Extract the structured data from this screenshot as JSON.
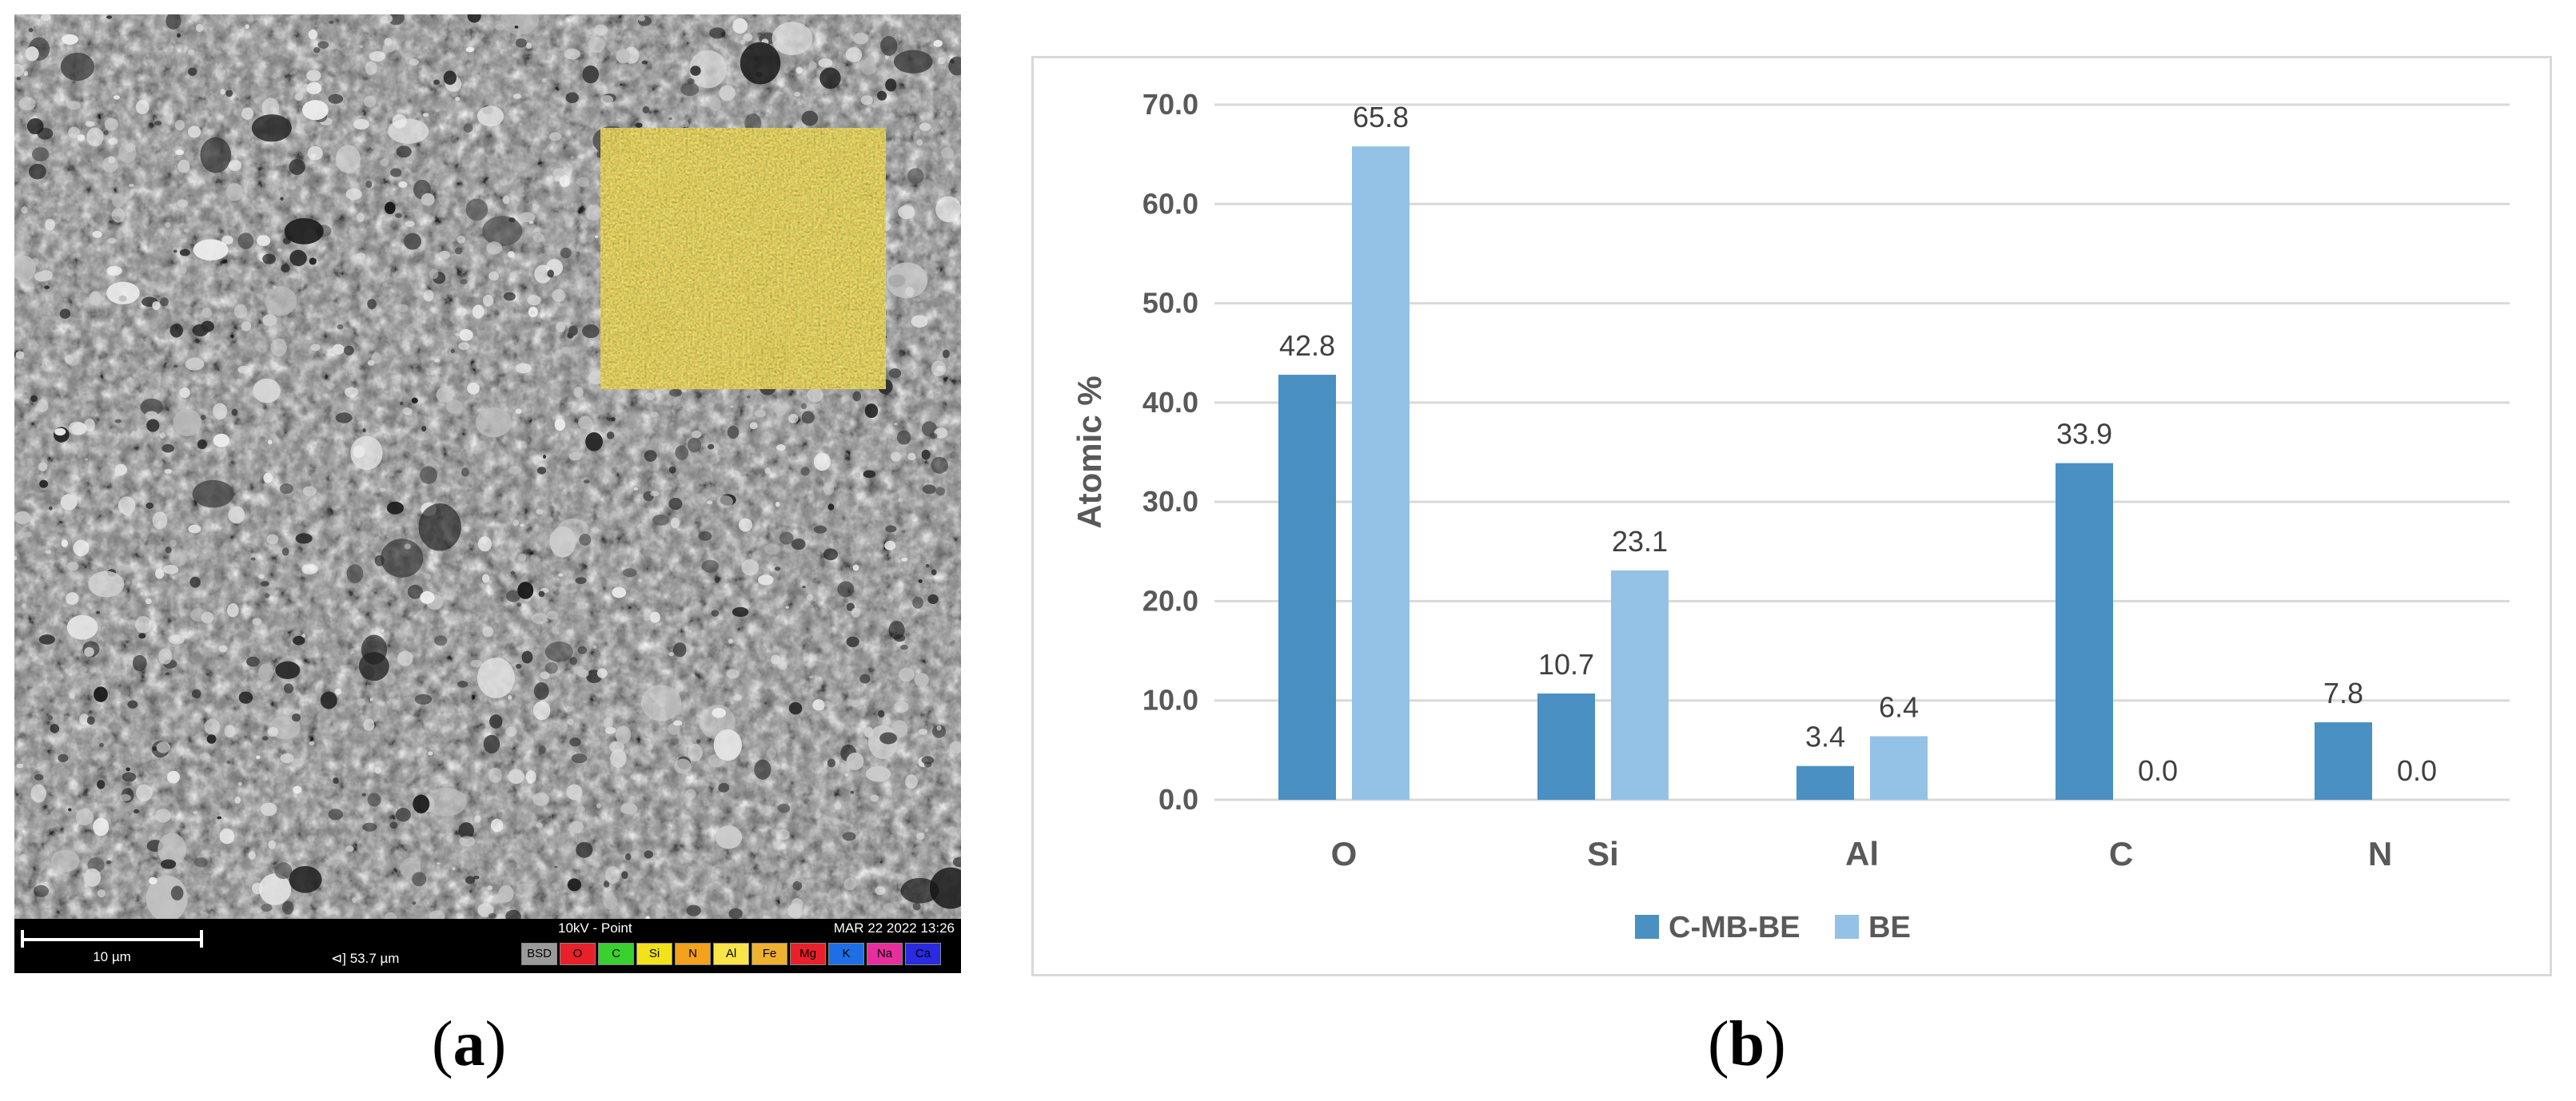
{
  "panel_a": {
    "label_open": "(",
    "label_letter": "a",
    "label_close": ")",
    "databar": {
      "scale_bar": "10 µm",
      "hfw": "⊲] 53.7 µm",
      "mode": "10kV - Point",
      "datetime": "MAR 22 2022 13:26",
      "element_chips": [
        {
          "text": "BSD",
          "color": "#9a9a9a"
        },
        {
          "text": "O",
          "color": "#e8202a"
        },
        {
          "text": "C",
          "color": "#39d12e"
        },
        {
          "text": "Si",
          "color": "#f2e21a"
        },
        {
          "text": "N",
          "color": "#f4a11b"
        },
        {
          "text": "Al",
          "color": "#f9e547"
        },
        {
          "text": "Fe",
          "color": "#f0b030"
        },
        {
          "text": "Mg",
          "color": "#e8202a"
        },
        {
          "text": "K",
          "color": "#1e6fe6"
        },
        {
          "text": "Na",
          "color": "#e62e9c"
        },
        {
          "text": "Ca",
          "color": "#2a2ae0"
        }
      ]
    }
  },
  "panel_b": {
    "label_open": "(",
    "label_letter": "b",
    "label_close": ")"
  },
  "chart_data": {
    "type": "bar",
    "categories": [
      "O",
      "Si",
      "Al",
      "C",
      "N"
    ],
    "series": [
      {
        "name": "C-MB-BE",
        "color": "#4a90c2",
        "values": [
          42.8,
          10.7,
          3.4,
          33.9,
          7.8
        ]
      },
      {
        "name": "BE",
        "color": "#94c2e6",
        "values": [
          65.8,
          23.1,
          6.4,
          0.0,
          0.0
        ]
      }
    ],
    "data_labels": [
      [
        "42.8",
        "10.7",
        "3.4",
        "33.9",
        "7.8"
      ],
      [
        "65.8",
        "23.1",
        "6.4",
        "0.0",
        "0.0"
      ]
    ],
    "ylabel": "Atomic %",
    "ylim": [
      0,
      70
    ],
    "yticks": [
      0,
      10,
      20,
      30,
      40,
      50,
      60,
      70
    ],
    "ytick_labels": [
      "0.0",
      "10.0",
      "20.0",
      "30.0",
      "40.0",
      "50.0",
      "60.0",
      "70.0"
    ],
    "grid": true,
    "legend_position": "bottom"
  }
}
